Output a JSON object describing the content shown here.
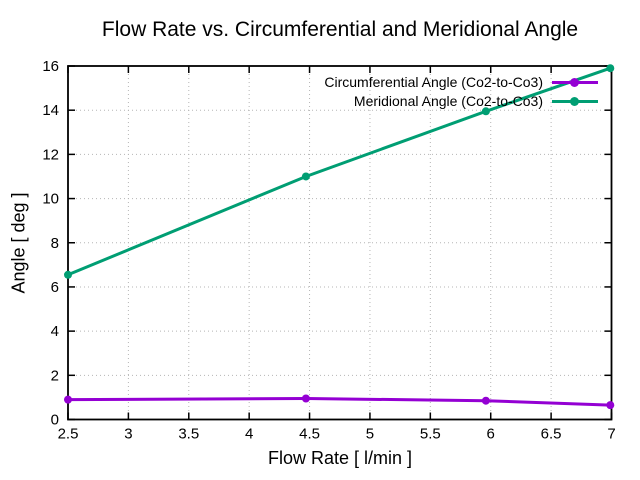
{
  "chart_data": {
    "type": "line",
    "title": "Flow Rate vs. Circumferential and Meridional Angle",
    "xlabel": "Flow Rate [ l/min ]",
    "ylabel": "Angle [ deg ]",
    "xlim": [
      2.5,
      7
    ],
    "ylim": [
      0,
      16
    ],
    "xticks": [
      2.5,
      3,
      3.5,
      4,
      4.5,
      5,
      5.5,
      6,
      6.5,
      7
    ],
    "yticks": [
      0,
      2,
      4,
      6,
      8,
      10,
      12,
      14,
      16
    ],
    "grid": true,
    "legend_position": "top-right-inside",
    "background_color": "#ffffff",
    "x": [
      2.5,
      4.47,
      5.96,
      6.99
    ],
    "series": [
      {
        "name": "Circumferential Angle (Co2-to-Co3)",
        "color": "#9400d3",
        "values": [
          0.9,
          0.95,
          0.85,
          0.65
        ]
      },
      {
        "name": "Meridional Angle (Co2-to-Co3)",
        "color": "#009e73",
        "values": [
          6.55,
          11.0,
          13.95,
          15.9
        ]
      }
    ]
  }
}
